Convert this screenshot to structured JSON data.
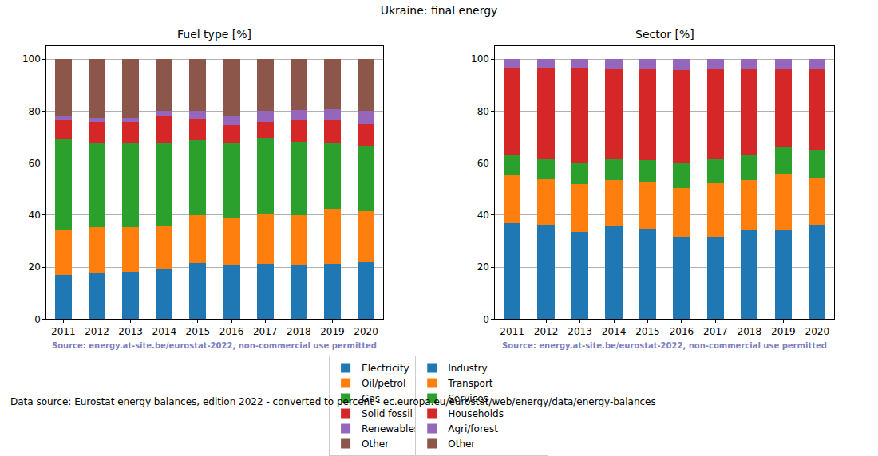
{
  "title": "Ukraine: final energy",
  "footer": "Data source: Eurostat energy balances, edition 2022 - converted to percent - ec.europa.eu/eurostat/web/energy/data/energy-balances",
  "chart_data": [
    {
      "type": "bar",
      "title": "Fuel type [%]",
      "stacked": true,
      "grid": true,
      "legend": "bottom",
      "annotations": [
        "Source: energy.at-site.be/eurostat-2022, non-commercial use permitted"
      ],
      "categories": [
        "2011",
        "2012",
        "2013",
        "2014",
        "2015",
        "2016",
        "2017",
        "2018",
        "2019",
        "2020"
      ],
      "ylim": [
        0,
        105
      ],
      "yticks": [
        0,
        20,
        40,
        60,
        80,
        100
      ],
      "series": [
        {
          "name": "Electricity",
          "color": "#1f77b4",
          "values": [
            17,
            17.8,
            18.2,
            19,
            21.5,
            20.7,
            21.3,
            21,
            21.3,
            22
          ]
        },
        {
          "name": "Oil/petrol",
          "color": "#ff7f0e",
          "values": [
            17,
            17.7,
            17.3,
            16.7,
            18.5,
            18.3,
            19,
            19,
            21,
            19.5
          ]
        },
        {
          "name": "Gas",
          "color": "#2ca02c",
          "values": [
            35.5,
            32.5,
            32.2,
            31.8,
            29.2,
            28.5,
            29.4,
            28.3,
            25.7,
            25.2
          ]
        },
        {
          "name": "Solid fossil",
          "color": "#d62728",
          "values": [
            7,
            7.7,
            8.1,
            10.5,
            7.8,
            7.2,
            6,
            8.4,
            8.5,
            8.3
          ]
        },
        {
          "name": "Renewables & biofuel",
          "color": "#9467bd",
          "values": [
            1.5,
            1.6,
            1.5,
            2,
            3,
            3.6,
            4.3,
            3.8,
            4.2,
            5
          ]
        },
        {
          "name": "Other",
          "color": "#8c564b",
          "values": [
            22,
            22.7,
            22.7,
            20,
            20,
            21.7,
            20,
            19.5,
            19.3,
            20
          ]
        }
      ]
    },
    {
      "type": "bar",
      "title": "Sector [%]",
      "stacked": true,
      "grid": true,
      "legend": "bottom",
      "annotations": [
        "Source: energy.at-site.be/eurostat-2022, non-commercial use permitted"
      ],
      "categories": [
        "2011",
        "2012",
        "2013",
        "2014",
        "2015",
        "2016",
        "2017",
        "2018",
        "2019",
        "2020"
      ],
      "ylim": [
        0,
        105
      ],
      "yticks": [
        0,
        20,
        40,
        60,
        80,
        100
      ],
      "series": [
        {
          "name": "Industry",
          "color": "#1f77b4",
          "values": [
            37,
            36.2,
            33.5,
            35.7,
            34.7,
            31.8,
            31.8,
            34,
            34.3,
            36.2
          ]
        },
        {
          "name": "Transport",
          "color": "#ff7f0e",
          "values": [
            18.5,
            17.8,
            18.3,
            17.6,
            18.1,
            18.7,
            20.4,
            19.3,
            21.5,
            18.3
          ]
        },
        {
          "name": "Services",
          "color": "#2ca02c",
          "values": [
            7.5,
            7.5,
            8.5,
            8.2,
            8.4,
            9.5,
            9.3,
            9.7,
            10.2,
            10.7
          ]
        },
        {
          "name": "Households",
          "color": "#d62728",
          "values": [
            33.7,
            35.2,
            36.4,
            35,
            34.8,
            35.7,
            34.7,
            33.2,
            30,
            31
          ]
        },
        {
          "name": "Agri/forest",
          "color": "#9467bd",
          "values": [
            3.3,
            3.3,
            3.3,
            3.5,
            4,
            4.3,
            3.8,
            3.8,
            4,
            3.8
          ]
        },
        {
          "name": "Other",
          "color": "#8c564b",
          "values": [
            0,
            0,
            0,
            0,
            0,
            0,
            0,
            0,
            0,
            0
          ]
        }
      ]
    }
  ]
}
